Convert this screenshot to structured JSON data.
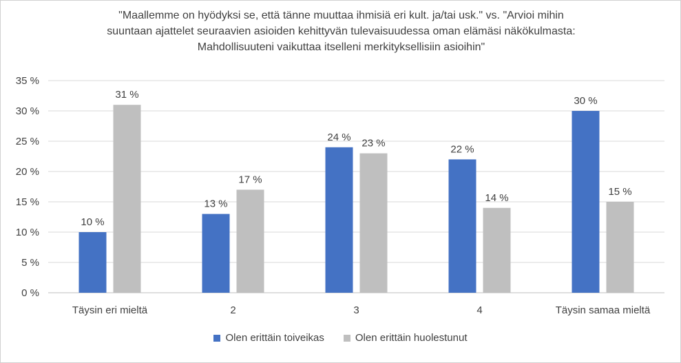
{
  "chart_data": {
    "type": "bar",
    "title_lines": [
      "\"Maallemme on hyödyksi se, että tänne muuttaa ihmisiä eri kult. ja/tai usk.\" vs. \"Arvioi mihin",
      "suuntaan ajattelet seuraavien asioiden kehittyvän tulevaisuudessa oman elämäsi näkökulmasta:",
      "Mahdollisuuteni vaikuttaa itselleni merkityksellisiin asioihin\""
    ],
    "categories": [
      "Täysin eri mieltä",
      "2",
      "3",
      "4",
      "Täysin samaa mieltä"
    ],
    "series": [
      {
        "name": "Olen erittäin toiveikas",
        "color": "#4472C4",
        "values": [
          10,
          13,
          24,
          22,
          30
        ],
        "labels": [
          "10 %",
          "13 %",
          "24 %",
          "22 %",
          "30 %"
        ]
      },
      {
        "name": "Olen erittäin huolestunut",
        "color": "#BFBFBF",
        "values": [
          31,
          17,
          23,
          14,
          15
        ],
        "labels": [
          "31 %",
          "17 %",
          "23 %",
          "14 %",
          "15 %"
        ]
      }
    ],
    "ylim": [
      0,
      35
    ],
    "yticks": [
      "0 %",
      "5 %",
      "10 %",
      "15 %",
      "20 %",
      "25 %",
      "30 %",
      "35 %"
    ],
    "grid": true,
    "legend_position": "bottom"
  }
}
